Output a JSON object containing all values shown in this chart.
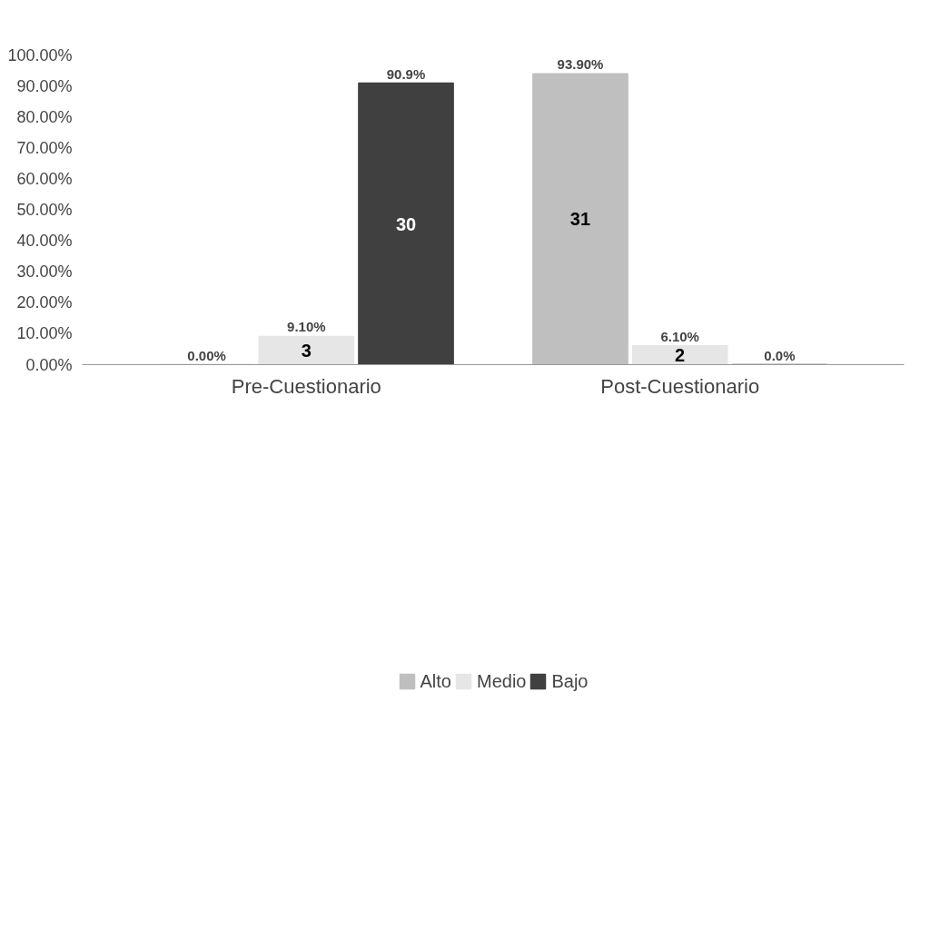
{
  "chart_data": {
    "type": "bar",
    "categories": [
      "Pre-Cuestionario",
      "Post-Cuestionario"
    ],
    "series": [
      {
        "name": "Alto",
        "color": "#bfbfbf",
        "values": [
          0.0,
          93.9
        ],
        "value_labels": [
          "0.00%",
          "93.90%"
        ]
      },
      {
        "name": "Medio",
        "color": "#e6e6e6",
        "values": [
          9.1,
          6.1
        ],
        "value_labels": [
          "9.10%",
          "6.10%"
        ]
      },
      {
        "name": "Bajo",
        "color": "#404040",
        "values": [
          90.9,
          0.0
        ],
        "value_labels": [
          "90.9%",
          "0.0%"
        ]
      }
    ],
    "ylim": [
      0,
      100
    ],
    "yticks": [
      {
        "value": 0,
        "label": "0.00%"
      },
      {
        "value": 10,
        "label": "10.00%"
      },
      {
        "value": 20,
        "label": "20.00%"
      },
      {
        "value": 30,
        "label": "30.00%"
      },
      {
        "value": 40,
        "label": "40.00%"
      },
      {
        "value": 50,
        "label": "50.00%"
      },
      {
        "value": 60,
        "label": "60.00%"
      },
      {
        "value": 70,
        "label": "70.00%"
      },
      {
        "value": 80,
        "label": "80.00%"
      },
      {
        "value": 90,
        "label": "90.00%"
      },
      {
        "value": 100,
        "label": "100.00%"
      }
    ],
    "annotations": [
      "3",
      "30",
      "31",
      "2"
    ],
    "legend": "bottom",
    "grid": false
  }
}
